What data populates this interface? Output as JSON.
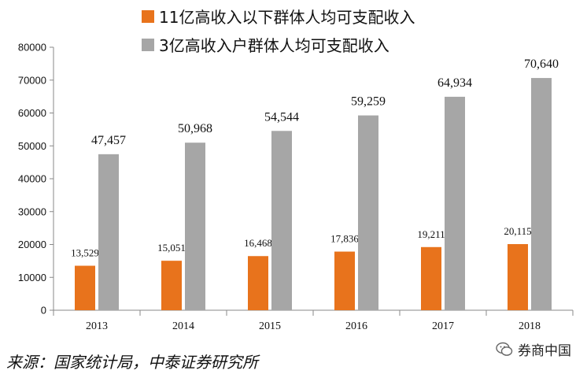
{
  "chart_data": {
    "type": "bar",
    "categories": [
      "2013",
      "2014",
      "2015",
      "2016",
      "2017",
      "2018"
    ],
    "series": [
      {
        "name": "11亿高收入以下群体人均可支配收入",
        "color": "#E8731C",
        "values": [
          13529,
          15051,
          16468,
          17836,
          19211,
          20115
        ],
        "labels": [
          "13,529",
          "15,051",
          "16,468",
          "17,836",
          "19,211",
          "20,115"
        ]
      },
      {
        "name": "3亿高收入户群体人均可支配收入",
        "color": "#A6A6A6",
        "values": [
          47457,
          50968,
          54544,
          59259,
          64934,
          70640
        ],
        "labels": [
          "47,457",
          "50,968",
          "54,544",
          "59,259",
          "64,934",
          "70,640"
        ]
      }
    ],
    "ylim": [
      0,
      80000
    ],
    "yticks": [
      "0",
      "10000",
      "20000",
      "30000",
      "40000",
      "50000",
      "60000",
      "70000",
      "80000"
    ],
    "legend_position": "top",
    "grid": false
  },
  "source_note": "来源：国家统计局，中泰证券研究所",
  "watermark": {
    "text": "券商中国",
    "icon": "wechat-icon"
  }
}
